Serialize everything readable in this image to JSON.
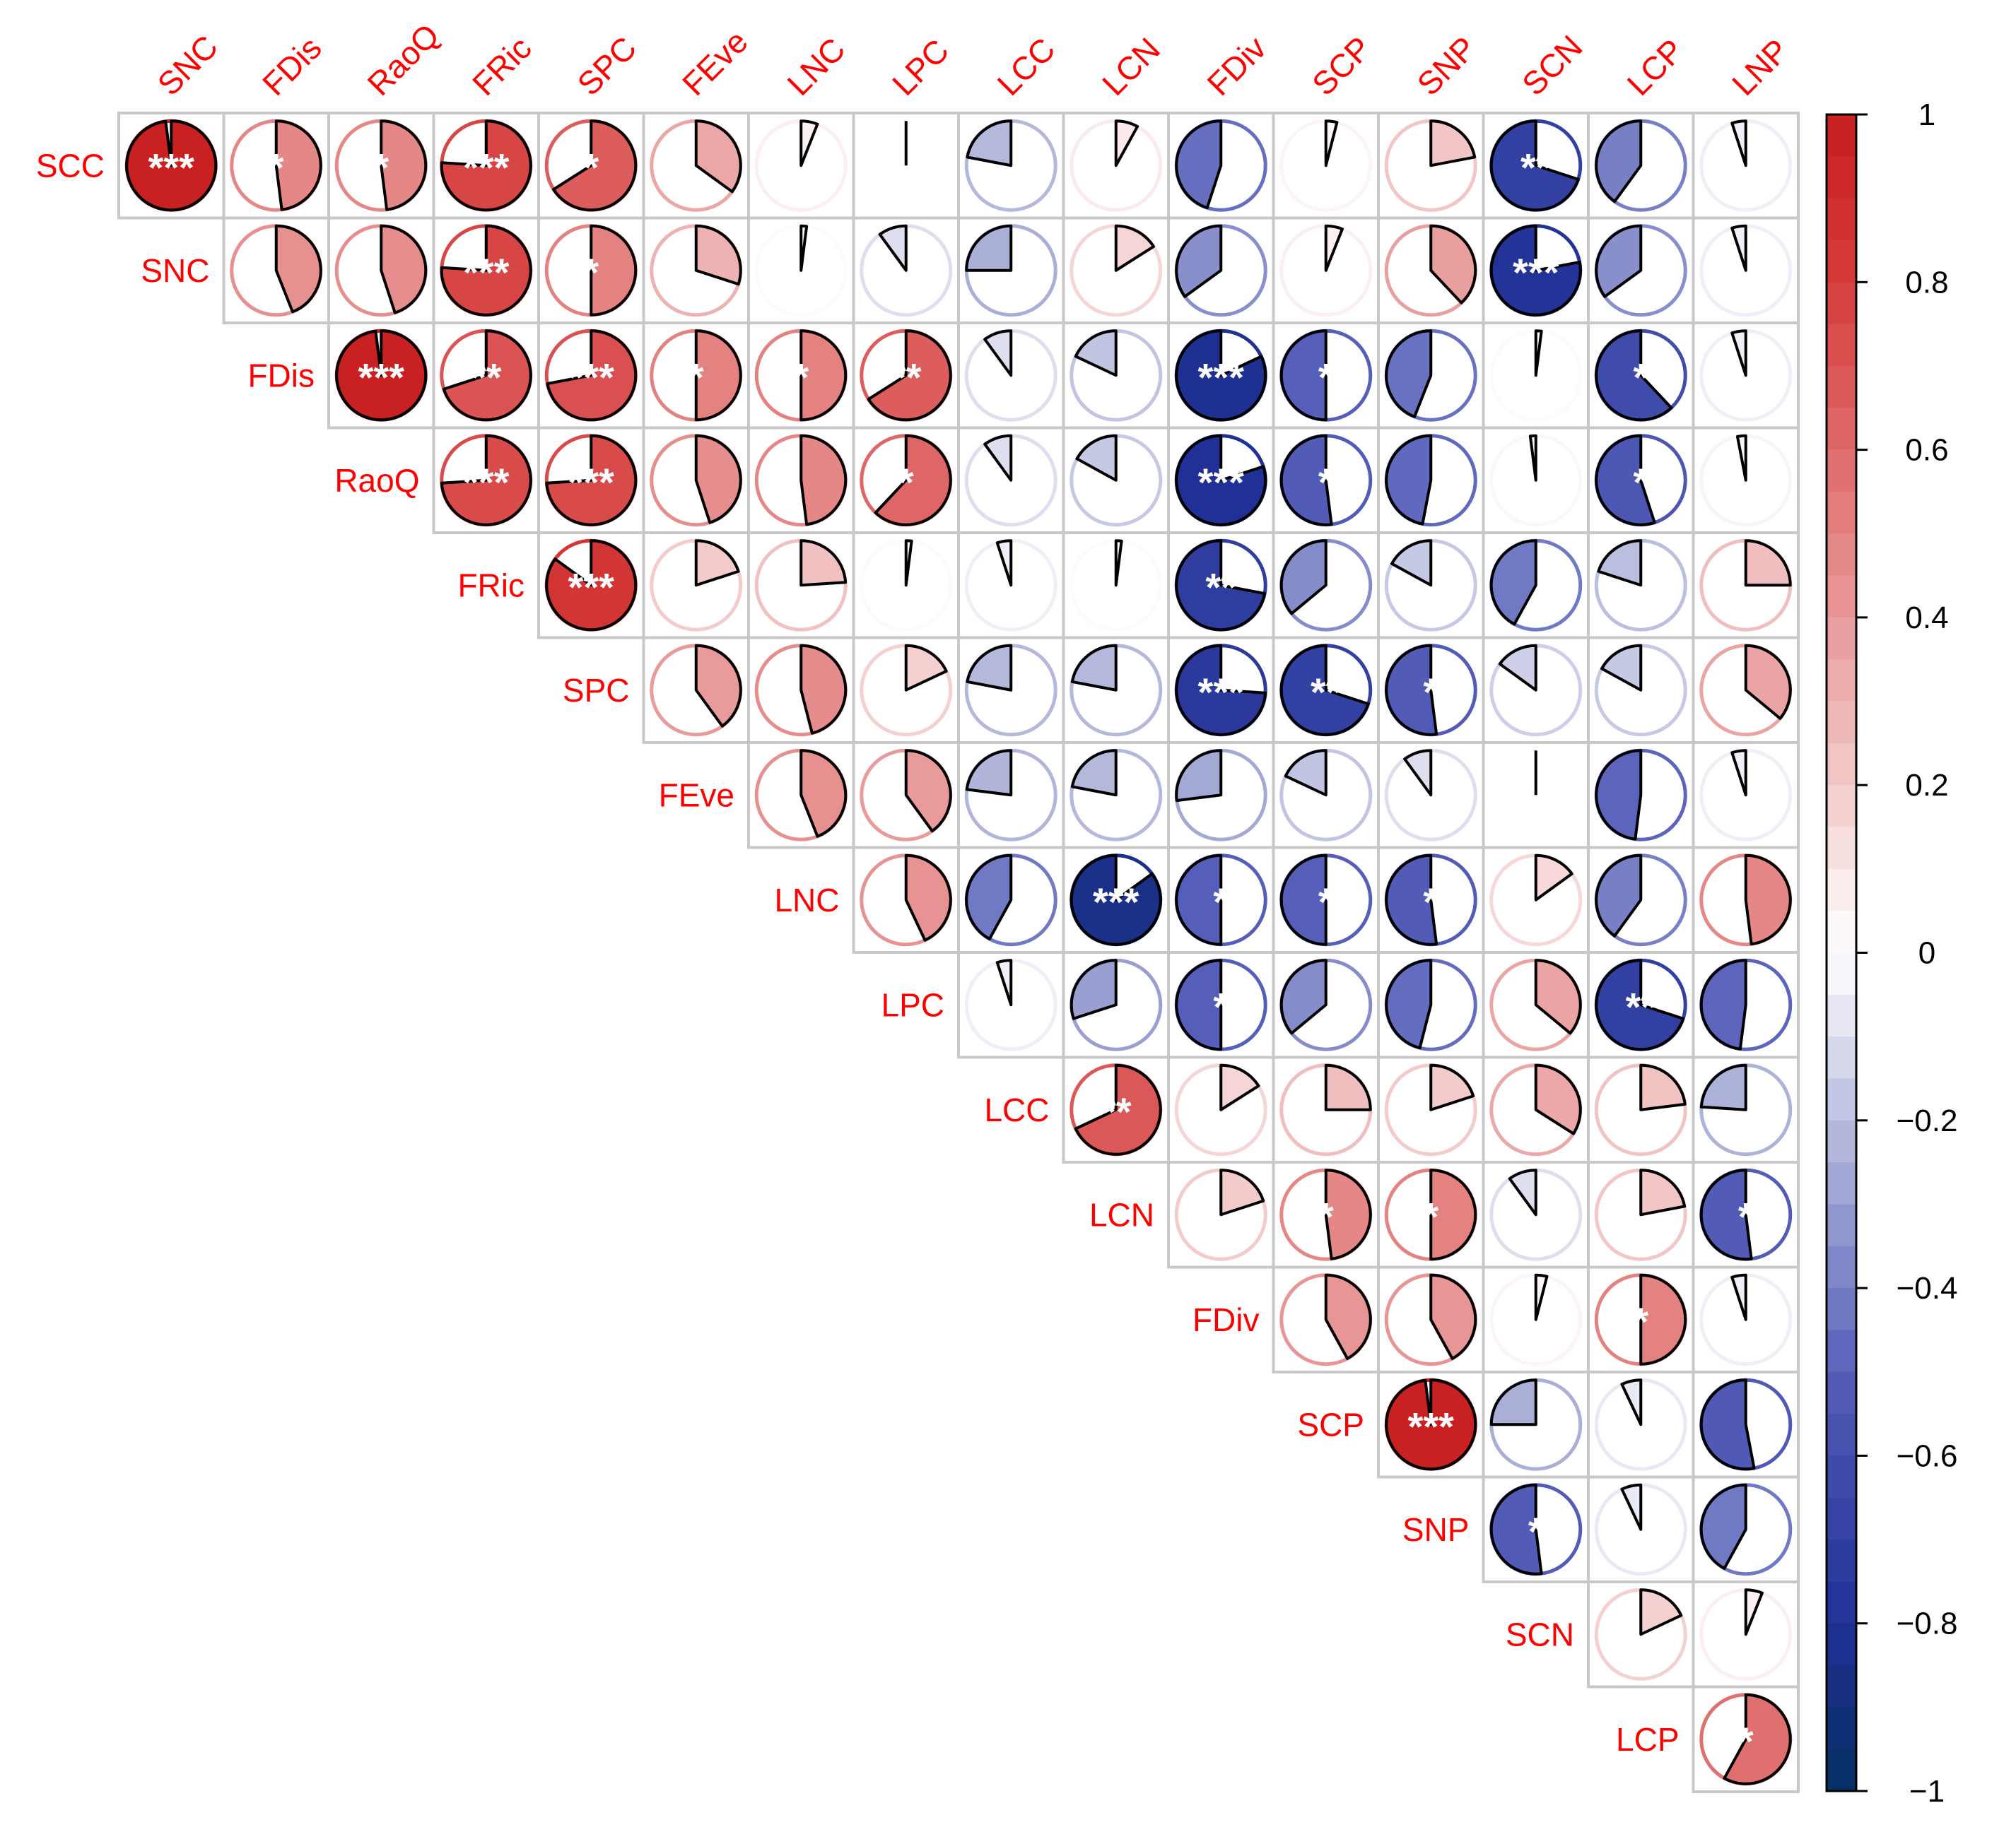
{
  "chart_data": {
    "type": "heatmap",
    "style": "pie",
    "matrix_shape": "upper-triangular",
    "column_labels": [
      "SNC",
      "FDis",
      "RaoQ",
      "FRic",
      "SPC",
      "FEve",
      "LNC",
      "LPC",
      "LCC",
      "LCN",
      "FDiv",
      "SCP",
      "SNP",
      "SCN",
      "LCP",
      "LNP"
    ],
    "row_labels": [
      "SCC",
      "SNC",
      "FDis",
      "RaoQ",
      "FRic",
      "SPC",
      "FEve",
      "LNC",
      "LPC",
      "LCC",
      "LCN",
      "FDiv",
      "SCP",
      "SNP",
      "SCN",
      "LCP"
    ],
    "label_color": "#ff0000",
    "colorbar": {
      "range": [
        -1,
        1
      ],
      "tick_labels": [
        "1",
        "0.8",
        "0.6",
        "0.4",
        "0.2",
        "0",
        "−0.2",
        "−0.4",
        "−0.6",
        "−0.8",
        "−1"
      ],
      "colors": {
        "negative": "#053061",
        "mid_negative": "#2020a0",
        "zero": "#ffffff",
        "mid_positive": "#e08080",
        "positive": "#d62728"
      }
    },
    "cells": [
      {
        "row": "SCC",
        "col": "SNC",
        "r": 0.98,
        "sig": "***"
      },
      {
        "row": "SCC",
        "col": "FDis",
        "r": 0.48,
        "sig": "*"
      },
      {
        "row": "SCC",
        "col": "RaoQ",
        "r": 0.48,
        "sig": "*"
      },
      {
        "row": "SCC",
        "col": "FRic",
        "r": 0.76,
        "sig": "***"
      },
      {
        "row": "SCC",
        "col": "SPC",
        "r": 0.66,
        "sig": "*"
      },
      {
        "row": "SCC",
        "col": "FEve",
        "r": 0.35,
        "sig": ""
      },
      {
        "row": "SCC",
        "col": "LNC",
        "r": 0.06,
        "sig": ""
      },
      {
        "row": "SCC",
        "col": "LPC",
        "r": 0.0,
        "sig": ""
      },
      {
        "row": "SCC",
        "col": "LCC",
        "r": -0.22,
        "sig": ""
      },
      {
        "row": "SCC",
        "col": "LCN",
        "r": 0.08,
        "sig": ""
      },
      {
        "row": "SCC",
        "col": "FDiv",
        "r": -0.45,
        "sig": ""
      },
      {
        "row": "SCC",
        "col": "SCP",
        "r": 0.04,
        "sig": ""
      },
      {
        "row": "SCC",
        "col": "SNP",
        "r": 0.22,
        "sig": ""
      },
      {
        "row": "SCC",
        "col": "SCN",
        "r": -0.7,
        "sig": "**"
      },
      {
        "row": "SCC",
        "col": "LCP",
        "r": -0.4,
        "sig": ""
      },
      {
        "row": "SCC",
        "col": "LNP",
        "r": -0.05,
        "sig": ""
      },
      {
        "row": "SNC",
        "col": "FDis",
        "r": 0.44,
        "sig": ""
      },
      {
        "row": "SNC",
        "col": "RaoQ",
        "r": 0.45,
        "sig": ""
      },
      {
        "row": "SNC",
        "col": "FRic",
        "r": 0.76,
        "sig": "***"
      },
      {
        "row": "SNC",
        "col": "SPC",
        "r": 0.5,
        "sig": "*"
      },
      {
        "row": "SNC",
        "col": "FEve",
        "r": 0.3,
        "sig": ""
      },
      {
        "row": "SNC",
        "col": "LNC",
        "r": 0.02,
        "sig": ""
      },
      {
        "row": "SNC",
        "col": "LPC",
        "r": -0.1,
        "sig": ""
      },
      {
        "row": "SNC",
        "col": "LCC",
        "r": -0.25,
        "sig": ""
      },
      {
        "row": "SNC",
        "col": "LCN",
        "r": 0.16,
        "sig": ""
      },
      {
        "row": "SNC",
        "col": "FDiv",
        "r": -0.35,
        "sig": ""
      },
      {
        "row": "SNC",
        "col": "SCP",
        "r": 0.06,
        "sig": ""
      },
      {
        "row": "SNC",
        "col": "SNP",
        "r": 0.38,
        "sig": ""
      },
      {
        "row": "SNC",
        "col": "SCN",
        "r": -0.78,
        "sig": "***"
      },
      {
        "row": "SNC",
        "col": "LCP",
        "r": -0.35,
        "sig": ""
      },
      {
        "row": "SNC",
        "col": "LNP",
        "r": -0.05,
        "sig": ""
      },
      {
        "row": "FDis",
        "col": "RaoQ",
        "r": 0.98,
        "sig": "***"
      },
      {
        "row": "FDis",
        "col": "FRic",
        "r": 0.7,
        "sig": "**"
      },
      {
        "row": "FDis",
        "col": "SPC",
        "r": 0.72,
        "sig": "***"
      },
      {
        "row": "FDis",
        "col": "FEve",
        "r": 0.5,
        "sig": "*"
      },
      {
        "row": "FDis",
        "col": "LNC",
        "r": 0.5,
        "sig": "*"
      },
      {
        "row": "FDis",
        "col": "LPC",
        "r": 0.66,
        "sig": "**"
      },
      {
        "row": "FDis",
        "col": "LCC",
        "r": -0.1,
        "sig": ""
      },
      {
        "row": "FDis",
        "col": "LCN",
        "r": -0.18,
        "sig": ""
      },
      {
        "row": "FDis",
        "col": "FDiv",
        "r": -0.82,
        "sig": "***"
      },
      {
        "row": "FDis",
        "col": "SCP",
        "r": -0.5,
        "sig": "*"
      },
      {
        "row": "FDis",
        "col": "SNP",
        "r": -0.44,
        "sig": ""
      },
      {
        "row": "FDis",
        "col": "SCN",
        "r": 0.02,
        "sig": ""
      },
      {
        "row": "FDis",
        "col": "LCP",
        "r": -0.62,
        "sig": "*"
      },
      {
        "row": "FDis",
        "col": "LNP",
        "r": -0.05,
        "sig": ""
      },
      {
        "row": "RaoQ",
        "col": "FRic",
        "r": 0.74,
        "sig": "***"
      },
      {
        "row": "RaoQ",
        "col": "SPC",
        "r": 0.74,
        "sig": "***"
      },
      {
        "row": "RaoQ",
        "col": "FEve",
        "r": 0.45,
        "sig": ""
      },
      {
        "row": "RaoQ",
        "col": "LNC",
        "r": 0.48,
        "sig": ""
      },
      {
        "row": "RaoQ",
        "col": "LPC",
        "r": 0.62,
        "sig": "*"
      },
      {
        "row": "RaoQ",
        "col": "LCC",
        "r": -0.1,
        "sig": ""
      },
      {
        "row": "RaoQ",
        "col": "LCN",
        "r": -0.17,
        "sig": ""
      },
      {
        "row": "RaoQ",
        "col": "FDiv",
        "r": -0.8,
        "sig": "***"
      },
      {
        "row": "RaoQ",
        "col": "SCP",
        "r": -0.52,
        "sig": "*"
      },
      {
        "row": "RaoQ",
        "col": "SNP",
        "r": -0.47,
        "sig": ""
      },
      {
        "row": "RaoQ",
        "col": "SCN",
        "r": -0.02,
        "sig": ""
      },
      {
        "row": "RaoQ",
        "col": "LCP",
        "r": -0.55,
        "sig": "*"
      },
      {
        "row": "RaoQ",
        "col": "LNP",
        "r": -0.03,
        "sig": ""
      },
      {
        "row": "FRic",
        "col": "SPC",
        "r": 0.85,
        "sig": "***"
      },
      {
        "row": "FRic",
        "col": "FEve",
        "r": 0.2,
        "sig": ""
      },
      {
        "row": "FRic",
        "col": "LNC",
        "r": 0.24,
        "sig": ""
      },
      {
        "row": "FRic",
        "col": "LPC",
        "r": 0.02,
        "sig": ""
      },
      {
        "row": "FRic",
        "col": "LCC",
        "r": -0.05,
        "sig": ""
      },
      {
        "row": "FRic",
        "col": "LCN",
        "r": 0.02,
        "sig": ""
      },
      {
        "row": "FRic",
        "col": "FDiv",
        "r": -0.72,
        "sig": "**"
      },
      {
        "row": "FRic",
        "col": "SCP",
        "r": -0.36,
        "sig": ""
      },
      {
        "row": "FRic",
        "col": "SNP",
        "r": -0.17,
        "sig": ""
      },
      {
        "row": "FRic",
        "col": "SCN",
        "r": -0.42,
        "sig": ""
      },
      {
        "row": "FRic",
        "col": "LCP",
        "r": -0.2,
        "sig": ""
      },
      {
        "row": "FRic",
        "col": "LNP",
        "r": 0.25,
        "sig": ""
      },
      {
        "row": "SPC",
        "col": "FEve",
        "r": 0.4,
        "sig": ""
      },
      {
        "row": "SPC",
        "col": "LNC",
        "r": 0.46,
        "sig": ""
      },
      {
        "row": "SPC",
        "col": "LPC",
        "r": 0.18,
        "sig": ""
      },
      {
        "row": "SPC",
        "col": "LCC",
        "r": -0.22,
        "sig": ""
      },
      {
        "row": "SPC",
        "col": "LCN",
        "r": -0.22,
        "sig": ""
      },
      {
        "row": "SPC",
        "col": "FDiv",
        "r": -0.74,
        "sig": "***"
      },
      {
        "row": "SPC",
        "col": "SCP",
        "r": -0.7,
        "sig": "**"
      },
      {
        "row": "SPC",
        "col": "SNP",
        "r": -0.52,
        "sig": "*"
      },
      {
        "row": "SPC",
        "col": "SCN",
        "r": -0.15,
        "sig": ""
      },
      {
        "row": "SPC",
        "col": "LCP",
        "r": -0.17,
        "sig": ""
      },
      {
        "row": "SPC",
        "col": "LNP",
        "r": 0.36,
        "sig": ""
      },
      {
        "row": "FEve",
        "col": "LNC",
        "r": 0.44,
        "sig": ""
      },
      {
        "row": "FEve",
        "col": "LPC",
        "r": 0.4,
        "sig": ""
      },
      {
        "row": "FEve",
        "col": "LCC",
        "r": -0.23,
        "sig": ""
      },
      {
        "row": "FEve",
        "col": "LCN",
        "r": -0.22,
        "sig": ""
      },
      {
        "row": "FEve",
        "col": "FDiv",
        "r": -0.27,
        "sig": ""
      },
      {
        "row": "FEve",
        "col": "SCP",
        "r": -0.18,
        "sig": ""
      },
      {
        "row": "FEve",
        "col": "SNP",
        "r": -0.1,
        "sig": ""
      },
      {
        "row": "FEve",
        "col": "SCN",
        "r": 0.0,
        "sig": ""
      },
      {
        "row": "FEve",
        "col": "LCP",
        "r": -0.48,
        "sig": ""
      },
      {
        "row": "FEve",
        "col": "LNP",
        "r": -0.05,
        "sig": ""
      },
      {
        "row": "LNC",
        "col": "LPC",
        "r": 0.43,
        "sig": ""
      },
      {
        "row": "LNC",
        "col": "LCC",
        "r": -0.42,
        "sig": ""
      },
      {
        "row": "LNC",
        "col": "LCN",
        "r": -0.85,
        "sig": "***"
      },
      {
        "row": "LNC",
        "col": "FDiv",
        "r": -0.5,
        "sig": "*"
      },
      {
        "row": "LNC",
        "col": "SCP",
        "r": -0.5,
        "sig": "*"
      },
      {
        "row": "LNC",
        "col": "SNP",
        "r": -0.52,
        "sig": "*"
      },
      {
        "row": "LNC",
        "col": "SCN",
        "r": 0.15,
        "sig": ""
      },
      {
        "row": "LNC",
        "col": "LCP",
        "r": -0.4,
        "sig": ""
      },
      {
        "row": "LNC",
        "col": "LNP",
        "r": 0.48,
        "sig": ""
      },
      {
        "row": "LPC",
        "col": "LCC",
        "r": -0.05,
        "sig": ""
      },
      {
        "row": "LPC",
        "col": "LCN",
        "r": -0.3,
        "sig": ""
      },
      {
        "row": "LPC",
        "col": "FDiv",
        "r": -0.5,
        "sig": "*"
      },
      {
        "row": "LPC",
        "col": "SCP",
        "r": -0.36,
        "sig": ""
      },
      {
        "row": "LPC",
        "col": "SNP",
        "r": -0.46,
        "sig": ""
      },
      {
        "row": "LPC",
        "col": "SCN",
        "r": 0.36,
        "sig": ""
      },
      {
        "row": "LPC",
        "col": "LCP",
        "r": -0.7,
        "sig": "**"
      },
      {
        "row": "LPC",
        "col": "LNP",
        "r": -0.48,
        "sig": ""
      },
      {
        "row": "LCC",
        "col": "LCN",
        "r": 0.68,
        "sig": "**"
      },
      {
        "row": "LCC",
        "col": "FDiv",
        "r": 0.16,
        "sig": ""
      },
      {
        "row": "LCC",
        "col": "SCP",
        "r": 0.25,
        "sig": ""
      },
      {
        "row": "LCC",
        "col": "SNP",
        "r": 0.2,
        "sig": ""
      },
      {
        "row": "LCC",
        "col": "SCN",
        "r": 0.34,
        "sig": ""
      },
      {
        "row": "LCC",
        "col": "LCP",
        "r": 0.23,
        "sig": ""
      },
      {
        "row": "LCC",
        "col": "LNP",
        "r": -0.24,
        "sig": ""
      },
      {
        "row": "LCN",
        "col": "FDiv",
        "r": 0.2,
        "sig": ""
      },
      {
        "row": "LCN",
        "col": "SCP",
        "r": 0.48,
        "sig": "*"
      },
      {
        "row": "LCN",
        "col": "SNP",
        "r": 0.5,
        "sig": "*"
      },
      {
        "row": "LCN",
        "col": "SCN",
        "r": -0.1,
        "sig": ""
      },
      {
        "row": "LCN",
        "col": "LCP",
        "r": 0.22,
        "sig": ""
      },
      {
        "row": "LCN",
        "col": "LNP",
        "r": -0.52,
        "sig": "*"
      },
      {
        "row": "FDiv",
        "col": "SCP",
        "r": 0.42,
        "sig": ""
      },
      {
        "row": "FDiv",
        "col": "SNP",
        "r": 0.42,
        "sig": ""
      },
      {
        "row": "FDiv",
        "col": "SCN",
        "r": 0.04,
        "sig": ""
      },
      {
        "row": "FDiv",
        "col": "LCP",
        "r": 0.5,
        "sig": "*"
      },
      {
        "row": "FDiv",
        "col": "LNP",
        "r": -0.05,
        "sig": ""
      },
      {
        "row": "SCP",
        "col": "SNP",
        "r": 0.98,
        "sig": "***"
      },
      {
        "row": "SCP",
        "col": "SCN",
        "r": -0.25,
        "sig": ""
      },
      {
        "row": "SCP",
        "col": "LCP",
        "r": -0.07,
        "sig": ""
      },
      {
        "row": "SCP",
        "col": "LNP",
        "r": -0.53,
        "sig": ""
      },
      {
        "row": "SNP",
        "col": "SCN",
        "r": -0.52,
        "sig": "*"
      },
      {
        "row": "SNP",
        "col": "LCP",
        "r": -0.07,
        "sig": ""
      },
      {
        "row": "SNP",
        "col": "LNP",
        "r": -0.42,
        "sig": ""
      },
      {
        "row": "SCN",
        "col": "LCP",
        "r": 0.18,
        "sig": ""
      },
      {
        "row": "SCN",
        "col": "LNP",
        "r": 0.06,
        "sig": ""
      },
      {
        "row": "LCP",
        "col": "LNP",
        "r": 0.58,
        "sig": "*"
      }
    ]
  }
}
